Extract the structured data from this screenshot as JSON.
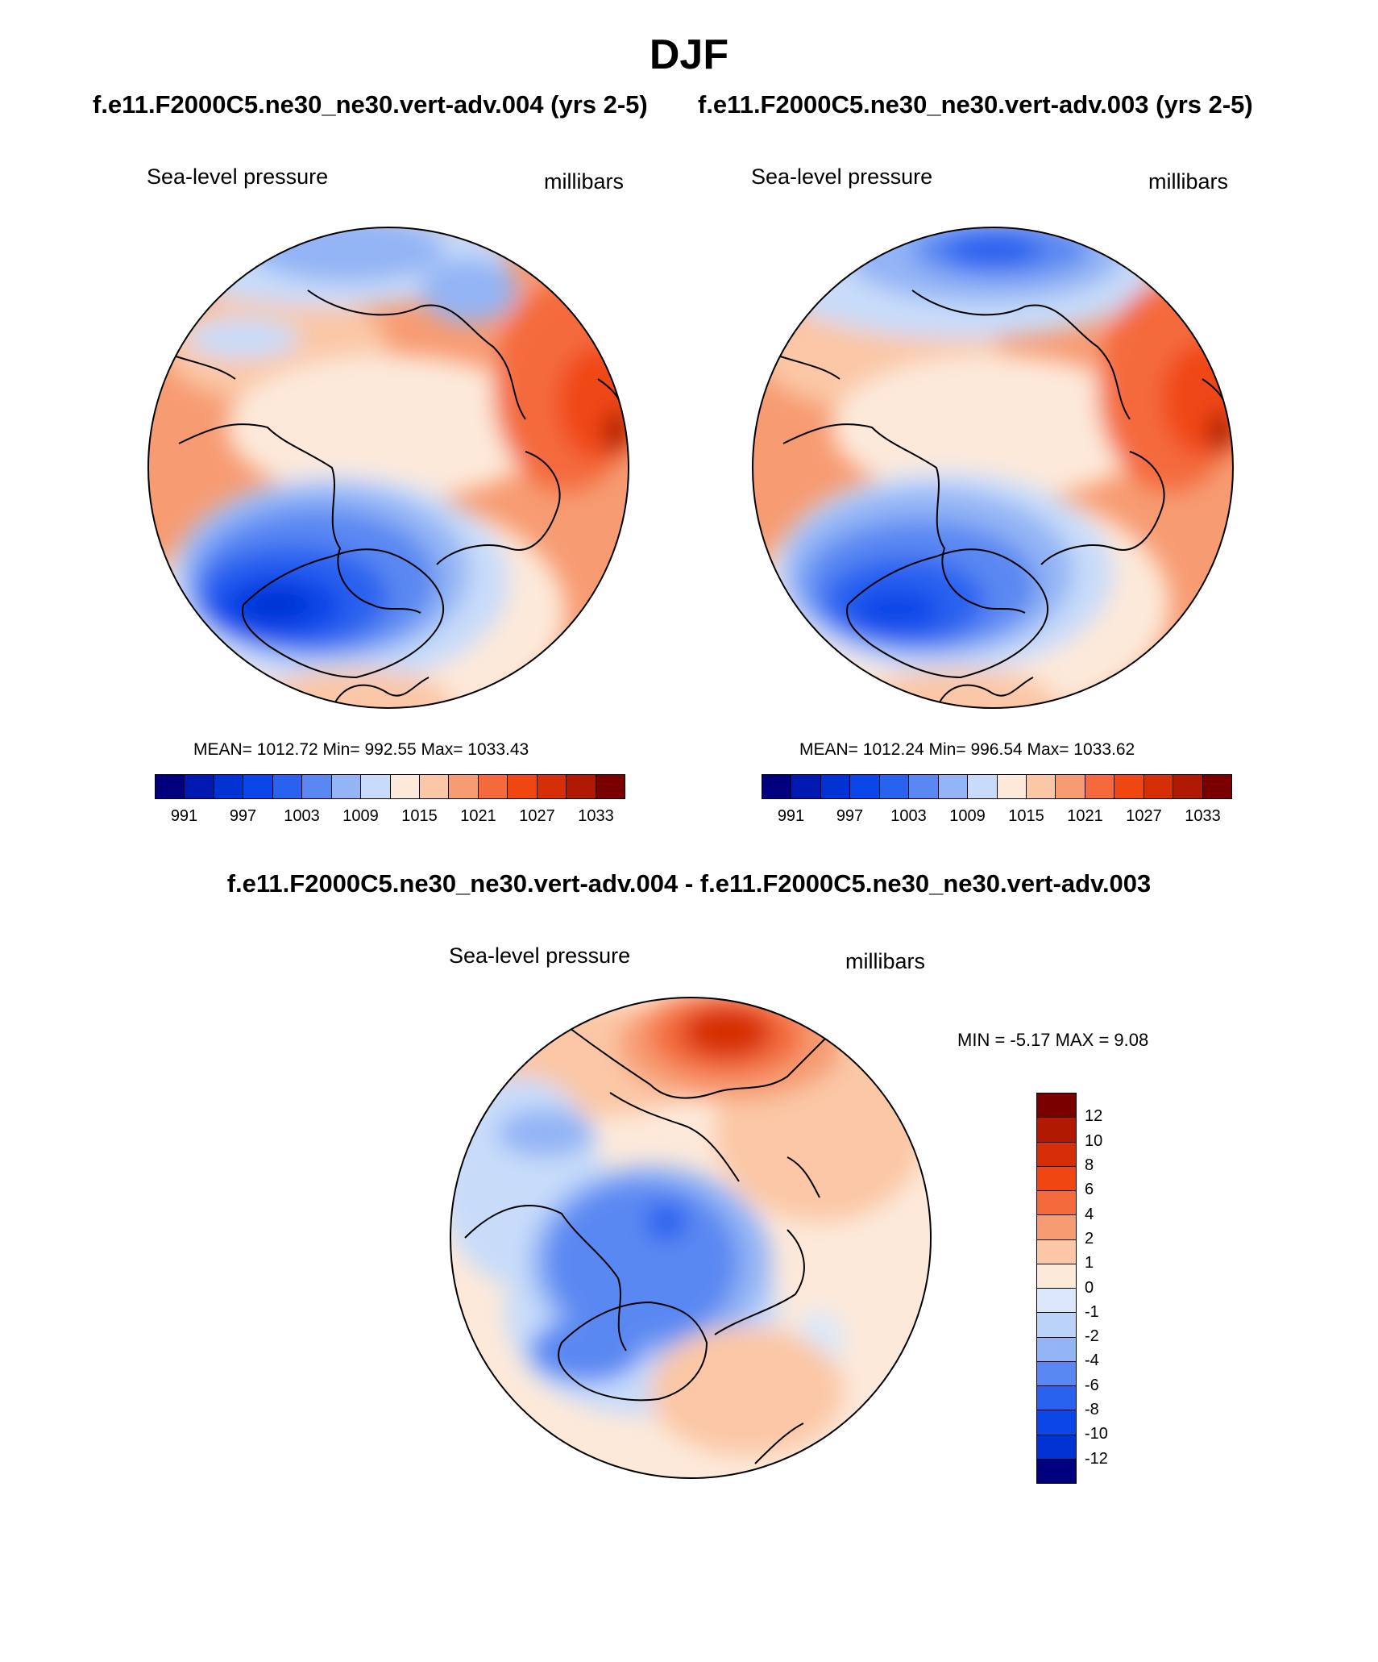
{
  "page": {
    "title": "DJF",
    "row1_subtitle_left": "f.e11.F2000C5.ne30_ne30.vert-adv.004 (yrs 2-5)",
    "row1_subtitle_right": "f.e11.F2000C5.ne30_ne30.vert-adv.003 (yrs 2-5)",
    "diff_subtitle": "f.e11.F2000C5.ne30_ne30.vert-adv.004 - f.e11.F2000C5.ne30_ne30.vert-adv.003"
  },
  "panels": {
    "left": {
      "variable": "Sea-level pressure",
      "units": "millibars",
      "stats": "MEAN= 1012.72  Min= 992.55  Max= 1033.43",
      "projection": "North polar stereographic"
    },
    "right": {
      "variable": "Sea-level pressure",
      "units": "millibars",
      "stats": "MEAN= 1012.24  Min= 996.54  Max= 1033.62",
      "projection": "North polar stereographic"
    },
    "diff": {
      "variable": "Sea-level pressure",
      "units": "millibars",
      "stats": "MIN =  -5.17 MAX =   9.08",
      "projection": "North polar stereographic"
    }
  },
  "colorbars": {
    "abs": {
      "ticks": [
        "991",
        "997",
        "1003",
        "1009",
        "1015",
        "1021",
        "1027",
        "1033"
      ],
      "colors": [
        "#00007f",
        "#0019b0",
        "#0032d4",
        "#0a46e8",
        "#2a62f0",
        "#5a88f2",
        "#93b4f5",
        "#c8dcfa",
        "#fde9da",
        "#fbc7a6",
        "#f79b72",
        "#f46a3c",
        "#f04712",
        "#d62e06",
        "#b01a03",
        "#7a0000"
      ]
    },
    "diff": {
      "ticks": [
        "12",
        "10",
        "8",
        "6",
        "4",
        "2",
        "1",
        "0",
        "-1",
        "-2",
        "-4",
        "-6",
        "-8",
        "-10",
        "-12"
      ],
      "colors": [
        "#7a0000",
        "#b01a03",
        "#d62e06",
        "#f04712",
        "#f46a3c",
        "#f79b72",
        "#fbc7a6",
        "#fde9da",
        "#dbe8fb",
        "#bcd3f8",
        "#93b4f5",
        "#5a88f2",
        "#2a62f0",
        "#0a46e8",
        "#0032d4",
        "#00007f"
      ]
    }
  }
}
